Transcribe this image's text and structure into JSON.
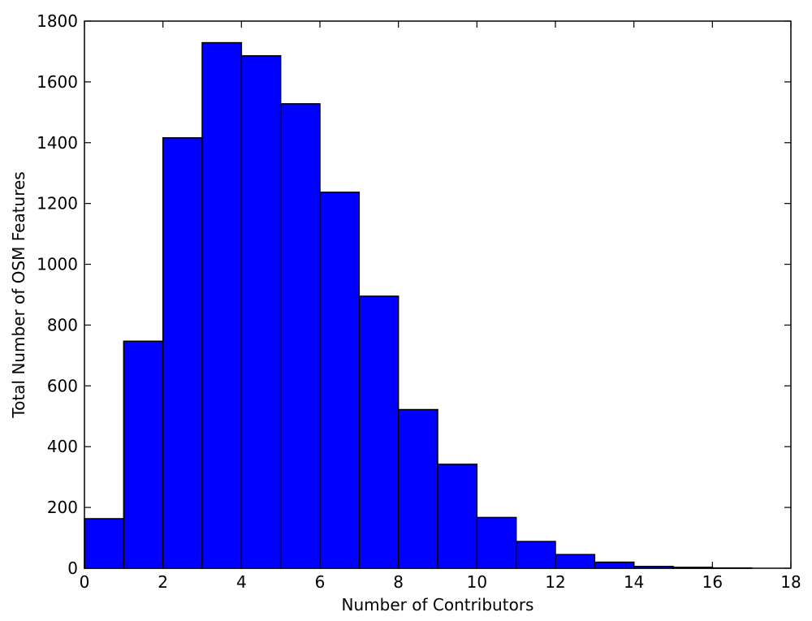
{
  "chart_data": {
    "type": "bar",
    "title": "",
    "xlabel": "Number of Contributors",
    "ylabel": "Total Number of OSM Features",
    "xlim": [
      0,
      18
    ],
    "ylim": [
      0,
      1800
    ],
    "bin_edges": [
      0,
      1,
      2,
      3,
      4,
      5,
      6,
      7,
      8,
      9,
      10,
      11,
      12,
      13,
      14,
      15,
      16,
      17,
      18
    ],
    "values": [
      163,
      747,
      1416,
      1729,
      1686,
      1528,
      1237,
      895,
      522,
      342,
      167,
      88,
      45,
      20,
      6,
      3,
      1,
      0
    ],
    "xticks": [
      0,
      2,
      4,
      6,
      8,
      10,
      12,
      14,
      16,
      18
    ],
    "xtick_labels": [
      "0",
      "2",
      "4",
      "6",
      "8",
      "10",
      "12",
      "14",
      "16",
      "18"
    ],
    "yticks": [
      0,
      200,
      400,
      600,
      800,
      1000,
      1200,
      1400,
      1600,
      1800
    ],
    "ytick_labels": [
      "0",
      "200",
      "400",
      "600",
      "800",
      "1000",
      "1200",
      "1400",
      "1600",
      "1800"
    ],
    "bar_color": "#0000ff",
    "edge_color": "#000000",
    "grid": false,
    "legend": false
  }
}
